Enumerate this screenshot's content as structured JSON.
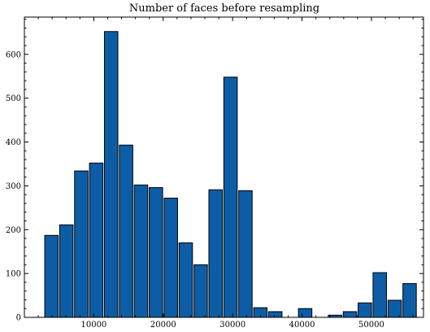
{
  "chart_data": {
    "type": "bar",
    "title": "Number of faces before resampling",
    "xlabel": "",
    "ylabel": "",
    "xlim": [
      0,
      57500
    ],
    "ylim": [
      0,
      685
    ],
    "bar_color": "#0c5da5",
    "edge_color": "#000000",
    "bin_width": 2150,
    "bin_centers": [
      3900,
      6050,
      8200,
      10350,
      12500,
      14650,
      16800,
      18950,
      21100,
      23250,
      25400,
      27550,
      29700,
      31850,
      34000,
      36150,
      38300,
      40450,
      42600,
      44750,
      46900,
      49050,
      51200,
      53350,
      55500
    ],
    "values": [
      187,
      211,
      334,
      352,
      652,
      393,
      302,
      296,
      272,
      170,
      120,
      291,
      548,
      289,
      22,
      13,
      0,
      20,
      0,
      5,
      13,
      33,
      102,
      39,
      77
    ],
    "x_ticks": [
      10000,
      20000,
      30000,
      40000,
      50000
    ],
    "x_tick_labels": [
      "10000",
      "20000",
      "30000",
      "40000",
      "50000"
    ],
    "y_ticks": [
      0,
      100,
      200,
      300,
      400,
      500,
      600
    ],
    "y_tick_labels": [
      "0",
      "100",
      "200",
      "300",
      "400",
      "500",
      "600"
    ],
    "grid": false,
    "legend": "none"
  }
}
